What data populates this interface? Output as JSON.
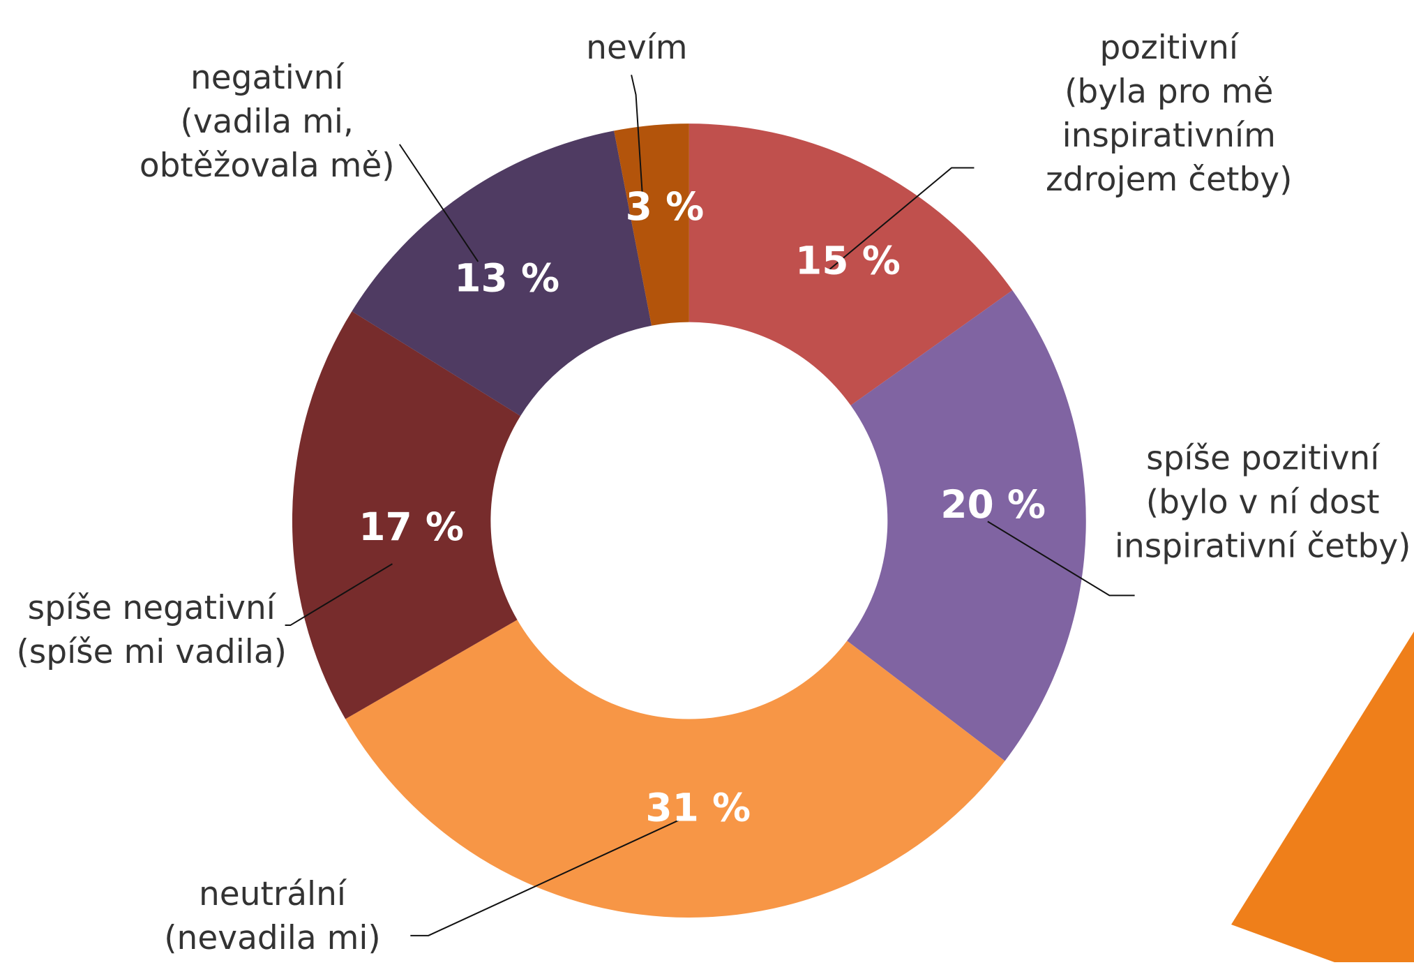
{
  "chart_data": {
    "type": "donut",
    "categories": [
      "pozitivní\n(byla pro mě\ninspirativním\nzdrojem četby)",
      "spíše pozitivní\n(bylo v ní dost\ninspirativní četby)",
      "neutrální\n(nevadila mi)",
      "spíše negativní\n(spíše mi vadila)",
      "negativní\n(vadila mi,\nobtěžovala mě)",
      "nevím"
    ],
    "values": [
      15,
      20,
      31,
      17,
      13,
      3
    ],
    "value_labels": [
      "15 %",
      "20 %",
      "31 %",
      "17 %",
      "13 %",
      "3 %"
    ],
    "colors": [
      "#c0504d",
      "#8064a2",
      "#f79646",
      "#772c2c",
      "#4f3b62",
      "#b3540b"
    ]
  }
}
